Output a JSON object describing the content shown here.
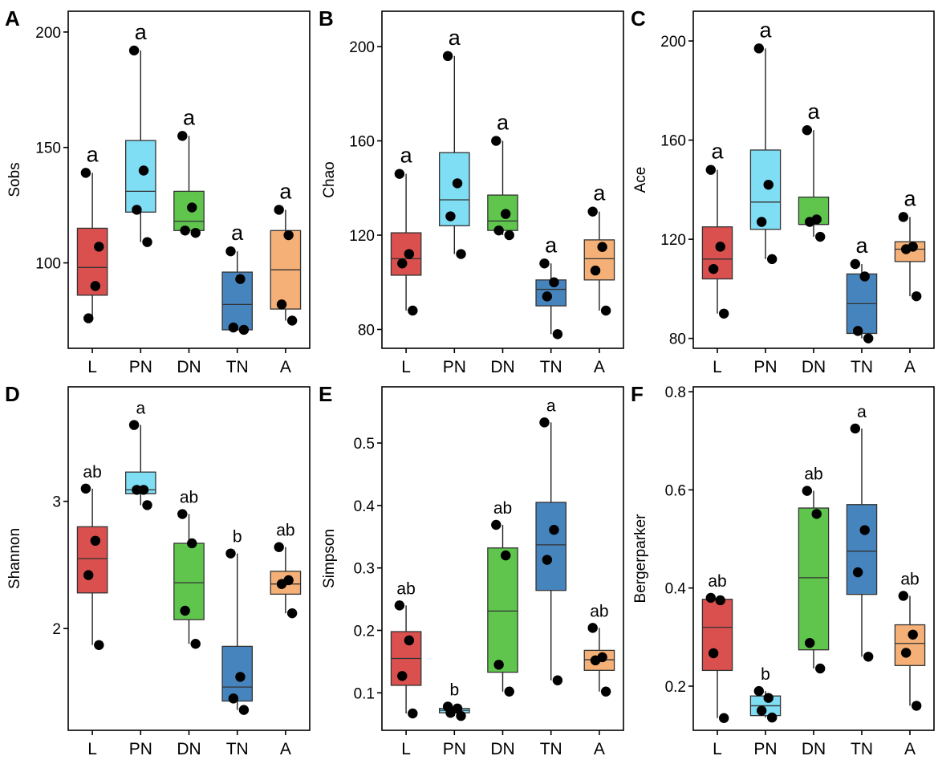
{
  "chart_data": [
    {
      "type": "boxplot",
      "panel_label": "A",
      "ylabel": "Sobs",
      "categories": [
        "L",
        "PN",
        "DN",
        "TN",
        "A"
      ],
      "colors": [
        "#D9504F",
        "#7FDDF4",
        "#5FC54D",
        "#4684BE",
        "#F5B077"
      ],
      "yticks": [
        100,
        150,
        200
      ],
      "ylim": [
        63,
        209
      ],
      "boxes": [
        {
          "min": 76,
          "q1": 86,
          "median": 98,
          "q3": 115,
          "max": 139
        },
        {
          "min": 109,
          "q1": 122,
          "median": 131,
          "q3": 153,
          "max": 192
        },
        {
          "min": 113,
          "q1": 114,
          "median": 118,
          "q3": 131,
          "max": 155
        },
        {
          "min": 71,
          "q1": 71,
          "median": 82,
          "q3": 96,
          "max": 105
        },
        {
          "min": 75,
          "q1": 80,
          "median": 97,
          "q3": 114,
          "max": 123
        }
      ],
      "points": [
        [
          139,
          90,
          76,
          107
        ],
        [
          192,
          140,
          123,
          109
        ],
        [
          155,
          124,
          114,
          113
        ],
        [
          105,
          93,
          72,
          71
        ],
        [
          123,
          112,
          82,
          75
        ]
      ],
      "letters": [
        "a",
        "a",
        "a",
        "a",
        "a"
      ]
    },
    {
      "type": "boxplot",
      "panel_label": "B",
      "ylabel": "Chao",
      "categories": [
        "L",
        "PN",
        "DN",
        "TN",
        "A"
      ],
      "colors": [
        "#D9504F",
        "#7FDDF4",
        "#5FC54D",
        "#4684BE",
        "#F5B077"
      ],
      "yticks": [
        80,
        120,
        160,
        200
      ],
      "ylim": [
        72,
        215
      ],
      "boxes": [
        {
          "min": 88,
          "q1": 103,
          "median": 110,
          "q3": 121,
          "max": 146
        },
        {
          "min": 112,
          "q1": 124,
          "median": 135,
          "q3": 155,
          "max": 196
        },
        {
          "min": 120,
          "q1": 122,
          "median": 126,
          "q3": 137,
          "max": 160
        },
        {
          "min": 78,
          "q1": 90,
          "median": 97,
          "q3": 101,
          "max": 108
        },
        {
          "min": 88,
          "q1": 101,
          "median": 110,
          "q3": 118,
          "max": 130
        }
      ],
      "points": [
        [
          146,
          112,
          108,
          88
        ],
        [
          196,
          142,
          128,
          112
        ],
        [
          160,
          129,
          122,
          120
        ],
        [
          108,
          100,
          94,
          78
        ],
        [
          130,
          115,
          105,
          88
        ]
      ],
      "letters": [
        "a",
        "a",
        "a",
        "a",
        "a"
      ]
    },
    {
      "type": "boxplot",
      "panel_label": "C",
      "ylabel": "Ace",
      "categories": [
        "L",
        "PN",
        "DN",
        "TN",
        "A"
      ],
      "colors": [
        "#D9504F",
        "#7FDDF4",
        "#5FC54D",
        "#4684BE",
        "#F5B077"
      ],
      "yticks": [
        80,
        120,
        160,
        200
      ],
      "ylim": [
        76,
        212
      ],
      "boxes": [
        {
          "min": 90,
          "q1": 104,
          "median": 112,
          "q3": 125,
          "max": 148
        },
        {
          "min": 112,
          "q1": 124,
          "median": 135,
          "q3": 156,
          "max": 197
        },
        {
          "min": 121,
          "q1": 126,
          "median": 126,
          "q3": 137,
          "max": 164
        },
        {
          "min": 80,
          "q1": 82,
          "median": 94,
          "q3": 106,
          "max": 110
        },
        {
          "min": 97,
          "q1": 111,
          "median": 116,
          "q3": 119,
          "max": 129
        }
      ],
      "points": [
        [
          148,
          117,
          108,
          90
        ],
        [
          197,
          142,
          127,
          112
        ],
        [
          164,
          128,
          127,
          121
        ],
        [
          110,
          105,
          83,
          80
        ],
        [
          129,
          117,
          116,
          97
        ]
      ],
      "letters": [
        "a",
        "a",
        "a",
        "a",
        "a"
      ]
    },
    {
      "type": "boxplot",
      "panel_label": "D",
      "ylabel": "Shannon",
      "categories": [
        "L",
        "PN",
        "DN",
        "TN",
        "A"
      ],
      "colors": [
        "#D9504F",
        "#7FDDF4",
        "#5FC54D",
        "#4684BE",
        "#F5B077"
      ],
      "yticks": [
        2,
        3
      ],
      "ylim": [
        1.2,
        3.9
      ],
      "boxes": [
        {
          "min": 1.87,
          "q1": 2.28,
          "median": 2.55,
          "q3": 2.8,
          "max": 3.1
        },
        {
          "min": 2.97,
          "q1": 3.06,
          "median": 3.09,
          "q3": 3.23,
          "max": 3.6
        },
        {
          "min": 1.88,
          "q1": 2.07,
          "median": 2.36,
          "q3": 2.67,
          "max": 2.9
        },
        {
          "min": 1.36,
          "q1": 1.43,
          "median": 1.54,
          "q3": 1.86,
          "max": 2.59
        },
        {
          "min": 2.12,
          "q1": 2.27,
          "median": 2.35,
          "q3": 2.45,
          "max": 2.64
        }
      ],
      "points": [
        [
          3.1,
          2.69,
          2.42,
          1.87
        ],
        [
          3.6,
          3.09,
          3.09,
          2.97
        ],
        [
          2.9,
          2.67,
          2.14,
          1.88
        ],
        [
          2.59,
          1.62,
          1.45,
          1.36
        ],
        [
          2.64,
          2.38,
          2.35,
          2.12
        ]
      ],
      "letters": [
        "ab",
        "a",
        "ab",
        "b",
        "ab"
      ]
    },
    {
      "type": "boxplot",
      "panel_label": "E",
      "ylabel": "Simpson",
      "categories": [
        "L",
        "PN",
        "DN",
        "TN",
        "A"
      ],
      "colors": [
        "#D9504F",
        "#7FDDF4",
        "#5FC54D",
        "#4684BE",
        "#F5B077"
      ],
      "yticks": [
        0.1,
        0.2,
        0.3,
        0.4,
        0.5
      ],
      "ylim": [
        0.04,
        0.59
      ],
      "boxes": [
        {
          "min": 0.067,
          "q1": 0.112,
          "median": 0.155,
          "q3": 0.198,
          "max": 0.24
        },
        {
          "min": 0.063,
          "q1": 0.068,
          "median": 0.072,
          "q3": 0.075,
          "max": 0.078
        },
        {
          "min": 0.102,
          "q1": 0.133,
          "median": 0.231,
          "q3": 0.332,
          "max": 0.369
        },
        {
          "min": 0.12,
          "q1": 0.264,
          "median": 0.337,
          "q3": 0.405,
          "max": 0.533
        },
        {
          "min": 0.102,
          "q1": 0.136,
          "median": 0.153,
          "q3": 0.168,
          "max": 0.204
        }
      ],
      "points": [
        [
          0.24,
          0.184,
          0.127,
          0.067
        ],
        [
          0.078,
          0.075,
          0.068,
          0.063
        ],
        [
          0.369,
          0.32,
          0.145,
          0.102
        ],
        [
          0.533,
          0.361,
          0.313,
          0.12
        ],
        [
          0.204,
          0.157,
          0.152,
          0.102
        ]
      ],
      "letters": [
        "ab",
        "b",
        "ab",
        "a",
        "ab"
      ]
    },
    {
      "type": "boxplot",
      "panel_label": "F",
      "ylabel": "Bergerparker",
      "categories": [
        "L",
        "PN",
        "DN",
        "TN",
        "A"
      ],
      "colors": [
        "#D9504F",
        "#7FDDF4",
        "#5FC54D",
        "#4684BE",
        "#F5B077"
      ],
      "yticks": [
        0.2,
        0.4,
        0.6,
        0.8
      ],
      "ylim": [
        0.11,
        0.81
      ],
      "boxes": [
        {
          "min": 0.135,
          "q1": 0.232,
          "median": 0.32,
          "q3": 0.377,
          "max": 0.38
        },
        {
          "min": 0.136,
          "q1": 0.14,
          "median": 0.16,
          "q3": 0.18,
          "max": 0.19
        },
        {
          "min": 0.236,
          "q1": 0.274,
          "median": 0.421,
          "q3": 0.563,
          "max": 0.598
        },
        {
          "min": 0.26,
          "q1": 0.387,
          "median": 0.475,
          "q3": 0.57,
          "max": 0.725
        },
        {
          "min": 0.16,
          "q1": 0.242,
          "median": 0.287,
          "q3": 0.325,
          "max": 0.384
        }
      ],
      "points": [
        [
          0.38,
          0.375,
          0.267,
          0.135
        ],
        [
          0.19,
          0.176,
          0.15,
          0.136
        ],
        [
          0.598,
          0.551,
          0.288,
          0.236
        ],
        [
          0.725,
          0.518,
          0.432,
          0.26
        ],
        [
          0.384,
          0.305,
          0.268,
          0.16
        ]
      ],
      "letters": [
        "ab",
        "b",
        "ab",
        "a",
        "ab"
      ]
    }
  ]
}
